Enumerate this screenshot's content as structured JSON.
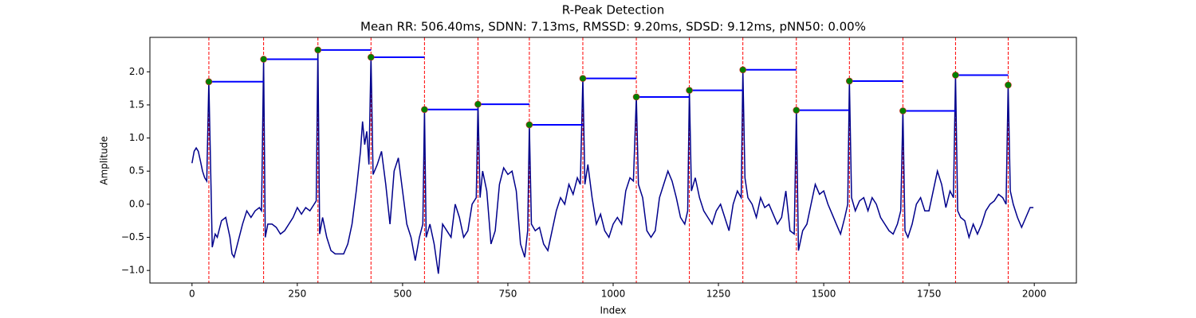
{
  "chart_data": {
    "type": "line",
    "title": "R-Peak Detection",
    "subtitle": "Mean RR: 506.40ms, SDNN: 7.13ms, RMSSD: 9.20ms, SDSD: 9.12ms, pNN50: 0.00%",
    "x_label": "Index",
    "y_label": "Amplitude",
    "color": "#00008b",
    "x": [
      0,
      5,
      10,
      15,
      20,
      25,
      30,
      35,
      40,
      45,
      48,
      55,
      60,
      70,
      80,
      90,
      95,
      100,
      110,
      120,
      130,
      140,
      150,
      160,
      165,
      170,
      174,
      180,
      190,
      200,
      210,
      220,
      230,
      240,
      250,
      260,
      270,
      280,
      290,
      295,
      299,
      303,
      310,
      320,
      330,
      340,
      350,
      360,
      370,
      380,
      390,
      400,
      405,
      410,
      415,
      420,
      425,
      430,
      440,
      450,
      460,
      470,
      480,
      490,
      500,
      510,
      520,
      530,
      540,
      548,
      552,
      556,
      565,
      575,
      585,
      595,
      605,
      615,
      625,
      635,
      645,
      655,
      665,
      675,
      679,
      684,
      690,
      700,
      710,
      720,
      730,
      740,
      750,
      760,
      770,
      780,
      790,
      797,
      801,
      806,
      815,
      825,
      835,
      845,
      855,
      865,
      875,
      885,
      895,
      905,
      915,
      922,
      928,
      933,
      940,
      950,
      960,
      970,
      980,
      990,
      1000,
      1010,
      1020,
      1030,
      1040,
      1048,
      1055,
      1060,
      1070,
      1080,
      1090,
      1100,
      1110,
      1120,
      1130,
      1140,
      1150,
      1160,
      1170,
      1177,
      1181,
      1186,
      1195,
      1205,
      1215,
      1225,
      1235,
      1245,
      1255,
      1265,
      1275,
      1285,
      1295,
      1304,
      1308,
      1313,
      1320,
      1330,
      1340,
      1350,
      1360,
      1370,
      1380,
      1390,
      1400,
      1410,
      1420,
      1430,
      1435,
      1440,
      1450,
      1460,
      1470,
      1480,
      1490,
      1500,
      1510,
      1520,
      1530,
      1540,
      1550,
      1557,
      1561,
      1566,
      1575,
      1585,
      1595,
      1605,
      1615,
      1625,
      1635,
      1645,
      1655,
      1665,
      1675,
      1683,
      1688,
      1693,
      1700,
      1710,
      1720,
      1730,
      1740,
      1750,
      1760,
      1770,
      1780,
      1790,
      1800,
      1808,
      1813,
      1818,
      1825,
      1835,
      1845,
      1855,
      1865,
      1875,
      1885,
      1895,
      1905,
      1915,
      1925,
      1933,
      1938,
      1943,
      1950,
      1960,
      1970,
      1980,
      1990,
      1998
    ],
    "values": [
      0.62,
      0.8,
      0.85,
      0.8,
      0.65,
      0.5,
      0.4,
      0.35,
      1.85,
      0.3,
      -0.65,
      -0.45,
      -0.5,
      -0.25,
      -0.2,
      -0.5,
      -0.75,
      -0.8,
      -0.55,
      -0.3,
      -0.1,
      -0.2,
      -0.1,
      -0.05,
      -0.1,
      2.19,
      -0.5,
      -0.3,
      -0.3,
      -0.35,
      -0.45,
      -0.4,
      -0.3,
      -0.2,
      -0.05,
      -0.15,
      -0.05,
      -0.1,
      0.0,
      0.05,
      2.33,
      -0.45,
      -0.2,
      -0.5,
      -0.7,
      -0.75,
      -0.75,
      -0.75,
      -0.6,
      -0.3,
      0.2,
      0.8,
      1.25,
      0.9,
      1.1,
      0.6,
      2.22,
      0.45,
      0.6,
      0.8,
      0.3,
      -0.3,
      0.5,
      0.7,
      0.2,
      -0.3,
      -0.5,
      -0.85,
      -0.5,
      -0.3,
      1.43,
      -0.5,
      -0.3,
      -0.6,
      -1.05,
      -0.3,
      -0.4,
      -0.5,
      0.0,
      -0.2,
      -0.5,
      -0.4,
      0.0,
      0.1,
      1.51,
      0.1,
      0.5,
      0.2,
      -0.6,
      -0.4,
      0.3,
      0.55,
      0.45,
      0.5,
      0.2,
      -0.6,
      -0.8,
      -0.4,
      1.2,
      -0.3,
      -0.4,
      -0.35,
      -0.6,
      -0.7,
      -0.4,
      -0.1,
      0.1,
      0.0,
      0.3,
      0.15,
      0.4,
      0.3,
      1.9,
      0.3,
      0.6,
      0.1,
      -0.3,
      -0.15,
      -0.4,
      -0.5,
      -0.3,
      -0.2,
      -0.3,
      0.2,
      0.4,
      0.35,
      1.62,
      0.3,
      0.1,
      -0.4,
      -0.5,
      -0.4,
      0.1,
      0.3,
      0.5,
      0.35,
      0.1,
      -0.2,
      -0.3,
      -0.1,
      1.72,
      0.2,
      0.4,
      0.1,
      -0.1,
      -0.2,
      -0.3,
      -0.1,
      0.0,
      -0.2,
      -0.4,
      0.0,
      0.2,
      0.1,
      2.03,
      0.4,
      0.1,
      0.0,
      -0.2,
      0.1,
      -0.05,
      0.0,
      -0.15,
      -0.3,
      -0.2,
      0.2,
      -0.4,
      -0.45,
      1.42,
      -0.7,
      -0.4,
      -0.3,
      0.0,
      0.3,
      0.15,
      0.2,
      0.0,
      -0.15,
      -0.3,
      -0.45,
      -0.2,
      0.0,
      1.86,
      0.1,
      -0.1,
      0.05,
      0.1,
      -0.1,
      0.1,
      0.0,
      -0.2,
      -0.3,
      -0.4,
      -0.45,
      -0.3,
      -0.1,
      1.41,
      -0.4,
      -0.5,
      -0.3,
      0.0,
      0.1,
      -0.1,
      -0.1,
      0.2,
      0.5,
      0.3,
      -0.05,
      0.2,
      0.1,
      1.95,
      -0.1,
      -0.2,
      -0.25,
      -0.5,
      -0.3,
      -0.45,
      -0.3,
      -0.1,
      0.0,
      0.05,
      0.15,
      0.1,
      0.0,
      1.8,
      0.2,
      0.0,
      -0.2,
      -0.35,
      -0.2,
      -0.05,
      -0.05
    ],
    "peaks": {
      "color": "green",
      "edge_color": "#d62728",
      "x": [
        40,
        170,
        299,
        425,
        552,
        679,
        801,
        928,
        1055,
        1181,
        1308,
        1435,
        1561,
        1688,
        1813,
        1938
      ],
      "values": [
        1.85,
        2.19,
        2.33,
        2.22,
        1.43,
        1.51,
        1.2,
        1.9,
        1.62,
        1.72,
        2.03,
        1.42,
        1.86,
        1.41,
        1.95,
        1.8
      ]
    },
    "rr_line_color": "#0000ff",
    "vline_color": "#ff0000",
    "xlim": [
      -100,
      2100
    ],
    "ylim": [
      -1.19,
      2.52
    ],
    "xticks": [
      0,
      250,
      500,
      750,
      1000,
      1250,
      1500,
      1750,
      2000
    ],
    "yticks": [
      {
        "value": -1,
        "label": "−1.0"
      },
      {
        "value": -0.5,
        "label": "−0.5"
      },
      {
        "value": 0,
        "label": "0.0"
      },
      0.5,
      {
        "value": 1,
        "label": "1.0"
      },
      1.5,
      {
        "value": 2,
        "label": "2.0"
      }
    ]
  }
}
